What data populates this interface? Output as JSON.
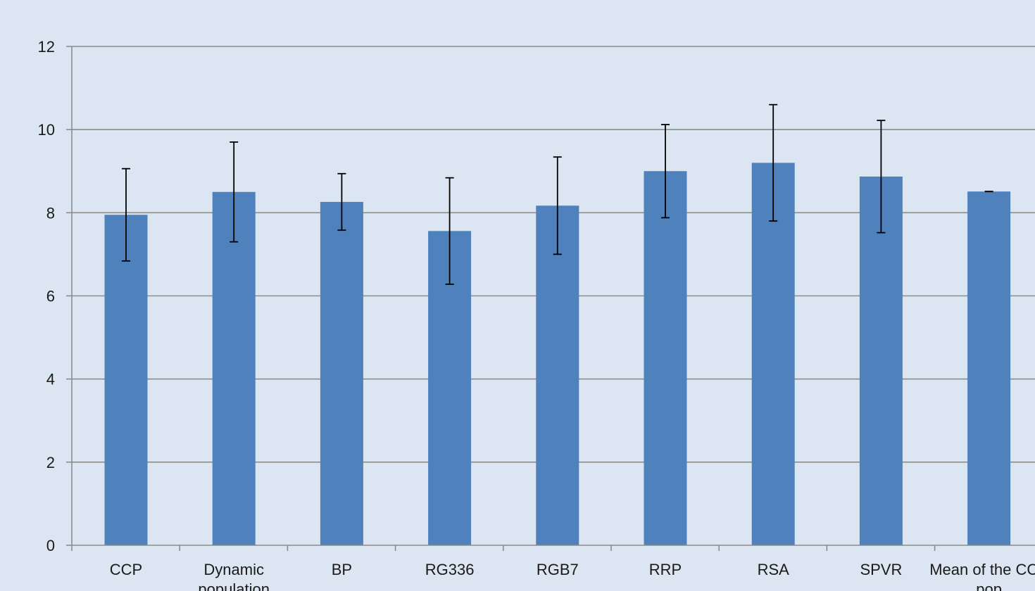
{
  "chart_data": {
    "type": "bar",
    "title": "",
    "xlabel": "",
    "ylabel": "",
    "ylim": [
      0,
      12
    ],
    "yticks": [
      0,
      2,
      4,
      6,
      8,
      10,
      12
    ],
    "grid": true,
    "legend": "none",
    "categories": [
      [
        "CCP"
      ],
      [
        "Dynamic",
        "population"
      ],
      [
        "BP"
      ],
      [
        "RG336"
      ],
      [
        "RGB7"
      ],
      [
        "RRP"
      ],
      [
        "RSA"
      ],
      [
        "SPVR"
      ],
      [
        "Mean of the CCP",
        "pop"
      ]
    ],
    "series": [
      {
        "values": [
          7.95,
          8.5,
          8.26,
          7.56,
          8.17,
          9.0,
          9.2,
          8.87,
          8.51
        ],
        "error": [
          1.11,
          1.2,
          0.68,
          1.28,
          1.17,
          1.12,
          1.4,
          1.35,
          0.0
        ]
      }
    ],
    "colors": {
      "bar": "#4f81bd",
      "background": "#dce6f2",
      "grid": "#8c8c8c",
      "axis": "#8c8c8c",
      "error_bar": "#000000"
    }
  }
}
